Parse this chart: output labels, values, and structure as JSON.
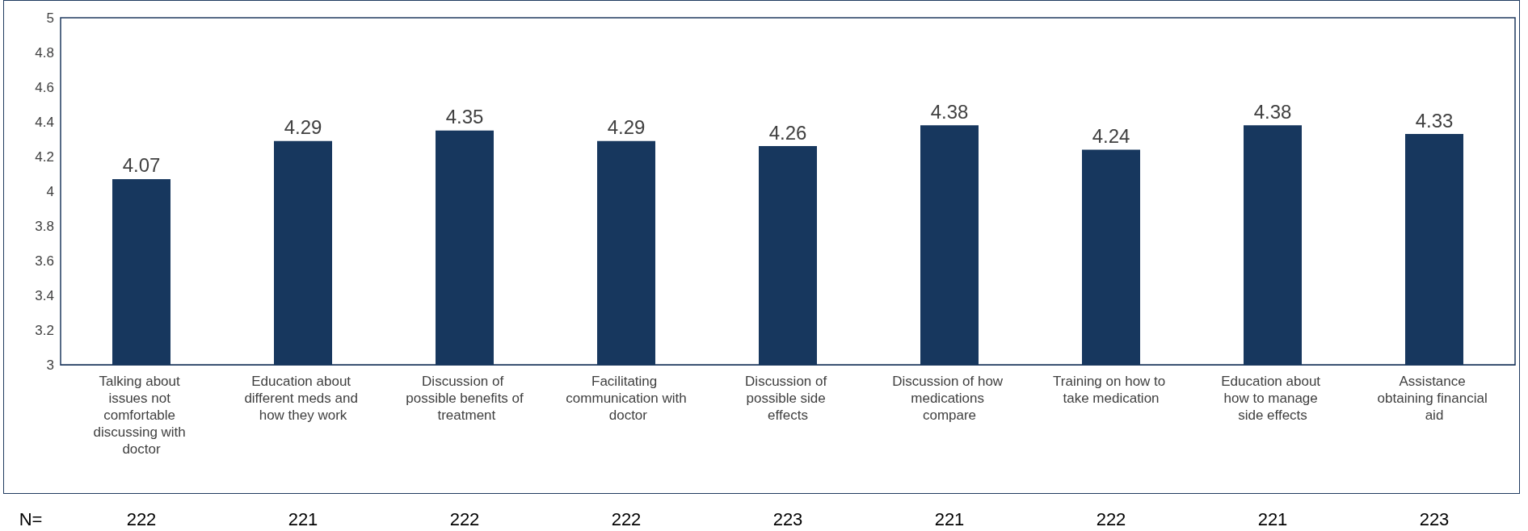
{
  "chart_data": {
    "type": "bar",
    "categories": [
      "Talking about issues not comfortable discussing with doctor",
      "Education about different meds and how they work",
      "Discussion of possible benefits of treatment",
      "Facilitating communication with doctor",
      "Discussion of possible side effects",
      "Discussion of how medications compare",
      "Training on how to take medication",
      "Education about how to manage side effects",
      "Assistance obtaining financial aid"
    ],
    "values": [
      4.07,
      4.29,
      4.35,
      4.29,
      4.26,
      4.38,
      4.24,
      4.38,
      4.33
    ],
    "color": "#17375e",
    "ylim": [
      3,
      5
    ],
    "yticks": [
      3,
      3.2,
      3.4,
      3.6,
      3.8,
      4,
      4.2,
      4.4,
      4.6,
      4.8,
      5
    ],
    "data_labels": true,
    "annotations": [
      "N=",
      "222",
      "221",
      "222",
      "222",
      "223",
      "221",
      "222",
      "221",
      "223"
    ]
  }
}
